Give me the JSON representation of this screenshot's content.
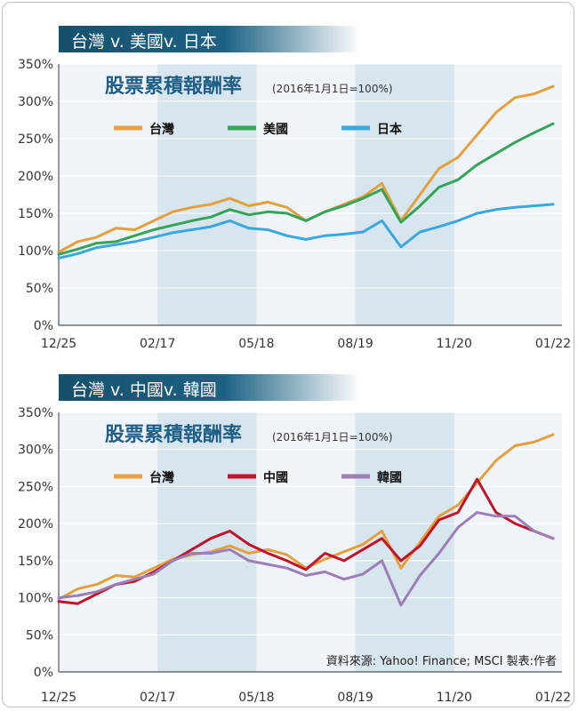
{
  "chart_data": [
    {
      "type": "line",
      "title": "股票累積報酬率",
      "subtitle": "(2016年1月1日=100%)",
      "banner": "台灣 v. 美國v. 日本",
      "ylim": [
        0,
        350
      ],
      "yticks": [
        "0%",
        "50%",
        "100%",
        "150%",
        "200%",
        "250%",
        "300%",
        "350%"
      ],
      "xticks": [
        "12/25",
        "02/17",
        "05/18",
        "08/19",
        "11/20",
        "01/22"
      ],
      "x": [
        "2016/01",
        "2016/04",
        "2016/07",
        "2016/10",
        "2017/01",
        "2017/04",
        "2017/07",
        "2017/10",
        "2018/01",
        "2018/02",
        "2018/04",
        "2018/07",
        "2018/10",
        "2019/01",
        "2019/04",
        "2019/07",
        "2019/10",
        "2020/01",
        "2020/03",
        "2020/06",
        "2020/09",
        "2020/12",
        "2021/01",
        "2021/04",
        "2021/07",
        "2021/10",
        "2021/12"
      ],
      "series": [
        {
          "name": "台灣",
          "color": "#e3a03c",
          "values": [
            98,
            112,
            118,
            130,
            128,
            140,
            152,
            158,
            162,
            170,
            160,
            165,
            158,
            140,
            152,
            162,
            172,
            190,
            140,
            175,
            210,
            225,
            255,
            285,
            305,
            310,
            320
          ]
        },
        {
          "name": "美國",
          "color": "#36a35a",
          "values": [
            95,
            102,
            110,
            112,
            120,
            128,
            134,
            140,
            145,
            155,
            148,
            152,
            150,
            140,
            152,
            160,
            170,
            182,
            138,
            160,
            185,
            195,
            215,
            230,
            245,
            258,
            270
          ]
        },
        {
          "name": "日本",
          "color": "#3aa7de",
          "values": [
            90,
            96,
            104,
            108,
            112,
            118,
            124,
            128,
            132,
            140,
            130,
            128,
            120,
            115,
            120,
            122,
            125,
            140,
            105,
            125,
            132,
            140,
            150,
            155,
            158,
            160,
            162
          ]
        }
      ],
      "grid": true,
      "legend": "top-left"
    },
    {
      "type": "line",
      "title": "股票累積報酬率",
      "subtitle": "(2016年1月1日=100%)",
      "banner": "台灣 v. 中國v. 韓國",
      "source": "資料來源: Yahoo! Finance; MSCI 製表:作者",
      "ylim": [
        0,
        350
      ],
      "yticks": [
        "0%",
        "50%",
        "100%",
        "150%",
        "200%",
        "250%",
        "300%",
        "350%"
      ],
      "xticks": [
        "12/25",
        "02/17",
        "05/18",
        "08/19",
        "11/20",
        "01/22"
      ],
      "x": [
        "2016/01",
        "2016/04",
        "2016/07",
        "2016/10",
        "2017/01",
        "2017/04",
        "2017/07",
        "2017/10",
        "2018/01",
        "2018/02",
        "2018/04",
        "2018/07",
        "2018/10",
        "2019/01",
        "2019/04",
        "2019/07",
        "2019/10",
        "2020/01",
        "2020/03",
        "2020/06",
        "2020/09",
        "2020/12",
        "2021/01",
        "2021/04",
        "2021/07",
        "2021/10",
        "2021/12"
      ],
      "series": [
        {
          "name": "台灣",
          "color": "#e3a03c",
          "values": [
            98,
            112,
            118,
            130,
            128,
            140,
            152,
            158,
            162,
            170,
            160,
            165,
            158,
            140,
            152,
            162,
            172,
            190,
            140,
            175,
            210,
            225,
            255,
            285,
            305,
            310,
            320
          ]
        },
        {
          "name": "中國",
          "color": "#c0142d",
          "values": [
            95,
            92,
            105,
            118,
            122,
            135,
            150,
            165,
            180,
            190,
            172,
            160,
            150,
            138,
            160,
            150,
            165,
            180,
            150,
            170,
            205,
            215,
            260,
            215,
            200,
            190,
            180
          ]
        },
        {
          "name": "韓國",
          "color": "#9b7fb5",
          "values": [
            100,
            103,
            108,
            118,
            125,
            132,
            150,
            160,
            160,
            165,
            150,
            145,
            140,
            130,
            135,
            125,
            132,
            150,
            90,
            130,
            160,
            195,
            215,
            210,
            210,
            190,
            180
          ]
        }
      ],
      "grid": true,
      "legend": "top-left"
    }
  ]
}
